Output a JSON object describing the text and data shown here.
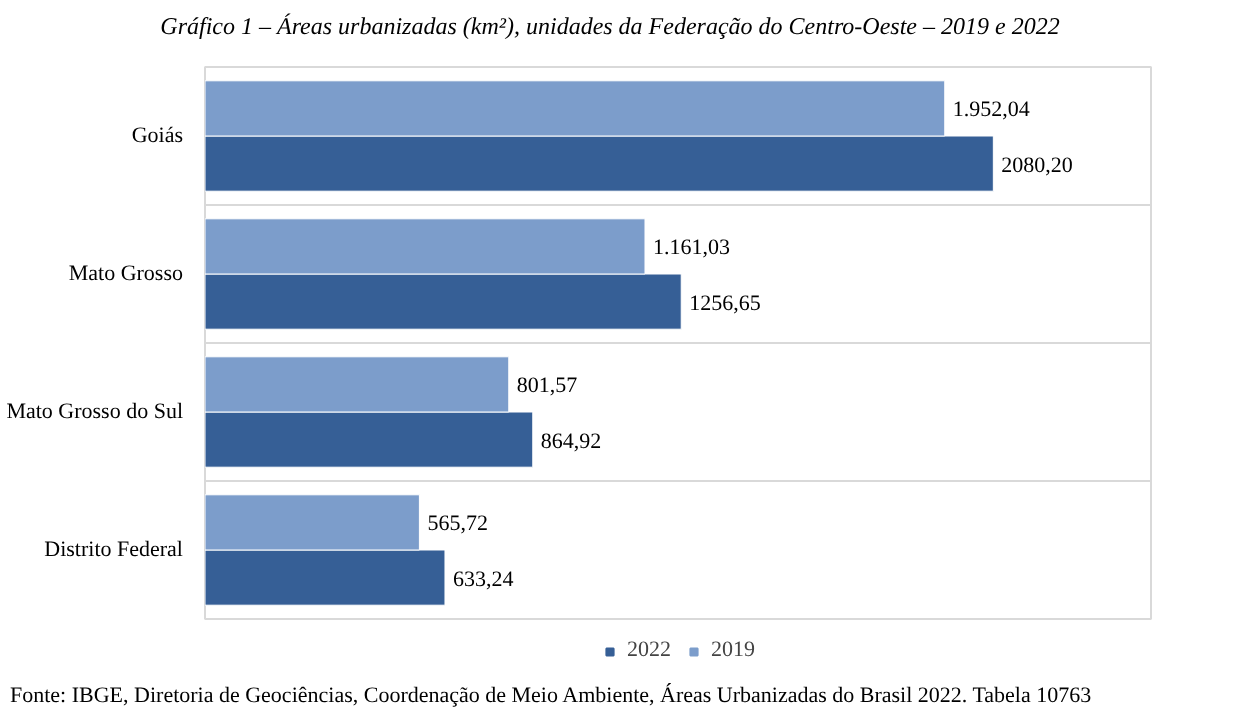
{
  "chart_data": {
    "type": "bar",
    "orientation": "horizontal",
    "title": "Gráfico 1 – Áreas urbanizadas (km²), unidades da Federação do Centro-Oeste – 2019 e 2022",
    "categories": [
      "Goiás",
      "Mato Grosso",
      "Mato Grosso do Sul",
      "Distrito Federal"
    ],
    "series": [
      {
        "name": "2022",
        "color": "#365f96",
        "values": [
          2080.2,
          1256.65,
          864.92,
          633.24
        ],
        "value_labels": [
          "2080,20",
          "1256,65",
          "864,92",
          "633,24"
        ]
      },
      {
        "name": "2019",
        "color": "#7c9dcb",
        "values": [
          1952.04,
          1161.03,
          801.57,
          565.72
        ],
        "value_labels": [
          "1.952,04",
          "1.161,03",
          "801,57",
          "565,72"
        ]
      }
    ],
    "grid": "y",
    "legend": "bottom",
    "annotations": [
      "Fonte: IBGE, Diretoria de Geociências, Coordenação de Meio Ambiente, Áreas Urbanizadas do Brasil 2022. Tabela 10763"
    ]
  }
}
